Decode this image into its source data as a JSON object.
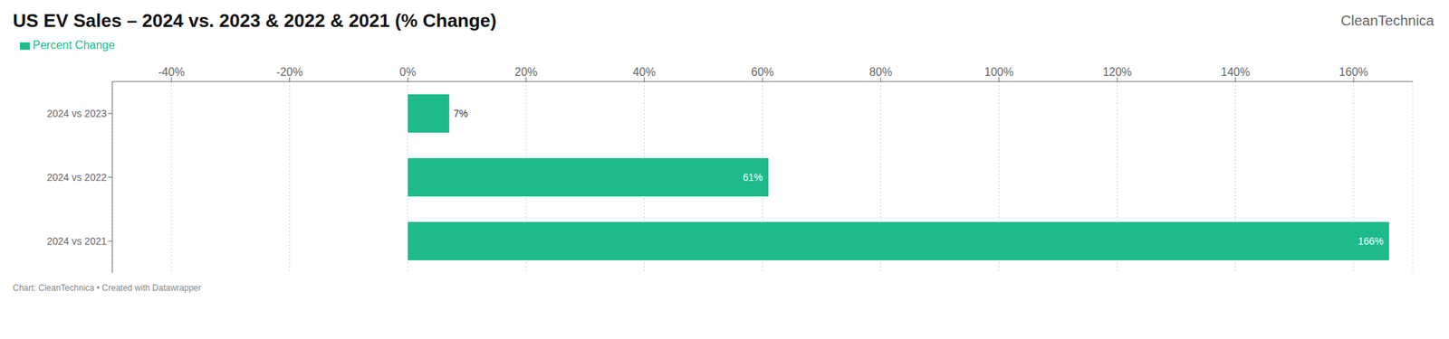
{
  "chart_data": {
    "type": "bar",
    "title": "US EV Sales – 2024 vs. 2023 & 2022 & 2021 (% Change)",
    "orientation": "horizontal",
    "categories": [
      "2024 vs 2023",
      "2024 vs 2022",
      "2024 vs 2021"
    ],
    "series": [
      {
        "name": "Percent Change",
        "color": "#1dbb8b",
        "values": [
          7,
          61,
          166
        ],
        "value_labels": [
          "7%",
          "61%",
          "166%"
        ]
      }
    ],
    "xlim": [
      -50,
      170
    ],
    "xticks": [
      {
        "value": -40,
        "label": "-40%"
      },
      {
        "value": -20,
        "label": "-20%"
      },
      {
        "value": 0,
        "label": "0%"
      },
      {
        "value": 20,
        "label": "20%"
      },
      {
        "value": 40,
        "label": "40%"
      },
      {
        "value": 60,
        "label": "60%"
      },
      {
        "value": 80,
        "label": "80%"
      },
      {
        "value": 100,
        "label": "100%"
      },
      {
        "value": 120,
        "label": "120%"
      },
      {
        "value": 140,
        "label": "140%"
      },
      {
        "value": 160,
        "label": "160%"
      }
    ],
    "grid": true,
    "legend": "upper left",
    "annotations": [
      "Chart: CleanTechnica • Created with Datawrapper",
      "CleanTechnica"
    ]
  }
}
